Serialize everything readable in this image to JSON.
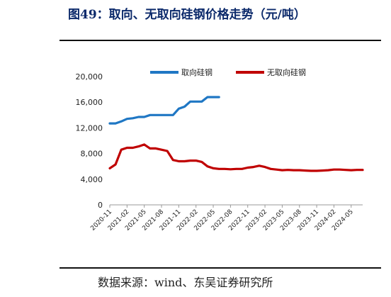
{
  "figure": {
    "title": "图49：取向、无取向硅钢价格走势（元/吨）",
    "source": "数据来源：wind、东吴证券研究所"
  },
  "chart_data": {
    "type": "line",
    "x": [
      "2020-11",
      "2020-12",
      "2021-01",
      "2021-02",
      "2021-03",
      "2021-04",
      "2021-05",
      "2021-06",
      "2021-07",
      "2021-08",
      "2021-09",
      "2021-10",
      "2021-11",
      "2021-12",
      "2022-01",
      "2022-02",
      "2022-03",
      "2022-04",
      "2022-05",
      "2022-06",
      "2022-07",
      "2022-08",
      "2022-09",
      "2022-10",
      "2022-11",
      "2022-12",
      "2023-01",
      "2023-02",
      "2023-03",
      "2023-04",
      "2023-05",
      "2023-06",
      "2023-07",
      "2023-08",
      "2023-09",
      "2023-10",
      "2023-11",
      "2023-12",
      "2024-01",
      "2024-02",
      "2024-03",
      "2024-04",
      "2024-05",
      "2024-06",
      "2024-07"
    ],
    "x_tick_labels": [
      "2020-11",
      "2021-02",
      "2021-05",
      "2021-08",
      "2021-11",
      "2022-02",
      "2022-05",
      "2022-08",
      "2022-11",
      "2023-02",
      "2023-05",
      "2023-08",
      "2023-11",
      "2024-02",
      "2024-05"
    ],
    "series": [
      {
        "name": "取向硅钢",
        "color": "#1f77c4",
        "values": [
          12700,
          12700,
          13000,
          13400,
          13500,
          13700,
          13700,
          14000,
          14000,
          14000,
          14000,
          14000,
          15000,
          15300,
          16100,
          16100,
          16100,
          16800,
          16800,
          16800,
          null,
          null,
          null,
          null,
          null,
          null,
          null,
          null,
          null,
          null,
          null,
          null,
          null,
          null,
          null,
          null,
          null,
          null,
          null,
          null,
          null,
          null,
          null,
          null,
          null
        ]
      },
      {
        "name": "无取向硅钢",
        "color": "#c00000",
        "values": [
          5700,
          6300,
          8600,
          8900,
          8900,
          9100,
          9400,
          8800,
          8800,
          8600,
          8400,
          7000,
          6800,
          6800,
          6900,
          6900,
          6700,
          6000,
          5700,
          5600,
          5600,
          5550,
          5600,
          5600,
          5800,
          5900,
          6100,
          5900,
          5600,
          5500,
          5400,
          5450,
          5400,
          5400,
          5350,
          5300,
          5300,
          5350,
          5400,
          5500,
          5500,
          5450,
          5400,
          5450,
          5450
        ]
      }
    ],
    "y_ticks": [
      "0",
      "4,000",
      "8,000",
      "12,000",
      "16,000",
      "20,000"
    ],
    "ylim": [
      0,
      20000
    ],
    "legend_position": "top",
    "grid": false
  }
}
